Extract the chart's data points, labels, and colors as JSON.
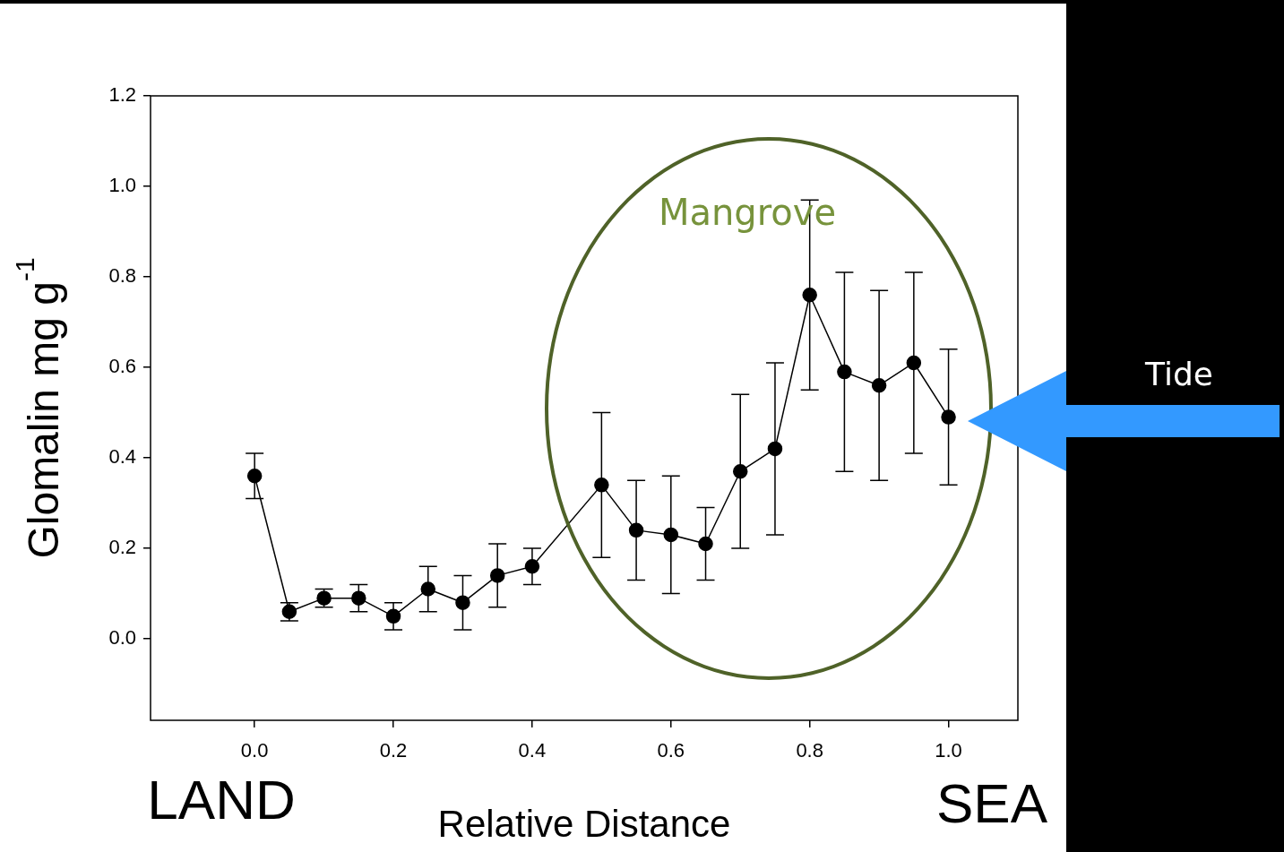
{
  "chart_data": {
    "type": "line",
    "xlabel": "Relative Distance",
    "ylabel": "Glomalin mg g$^{-1}$",
    "x": [
      0,
      0.05,
      0.1,
      0.15,
      0.2,
      0.25,
      0.3,
      0.35,
      0.4,
      0.5,
      0.55,
      0.6,
      0.65,
      0.7,
      0.75,
      0.8,
      0.85,
      0.9,
      0.95,
      1.0
    ],
    "series": [
      {
        "color": "#000000",
        "values": [
          0.36,
          0.06,
          0.09,
          0.09,
          0.05,
          0.11,
          0.08,
          0.14,
          0.16,
          0.34,
          0.24,
          0.23,
          0.21,
          0.37,
          0.42,
          0.76,
          0.59,
          0.56,
          0.61,
          0.49
        ],
        "errors": [
          0.05,
          0.02,
          0.02,
          0.03,
          0.03,
          0.05,
          0.06,
          0.07,
          0.04,
          0.16,
          0.11,
          0.13,
          0.08,
          0.17,
          0.19,
          0.21,
          0.22,
          0.21,
          0.2,
          0.15
        ]
      }
    ],
    "xlim": [
      -0.15,
      1.1
    ],
    "ylim": [
      -0.18,
      1.2
    ],
    "xticks": [
      {
        "value": 0,
        "label": "0.0"
      },
      {
        "value": 0.2,
        "label": "0.2"
      },
      {
        "value": 0.4,
        "label": "0.4"
      },
      {
        "value": 0.6,
        "label": "0.6"
      },
      {
        "value": 0.8,
        "label": "0.8"
      },
      {
        "value": 1.0,
        "label": "1.0"
      }
    ],
    "yticks": [
      {
        "value": 0,
        "label": "0.0"
      },
      {
        "value": 0.2,
        "label": "0.2"
      },
      {
        "value": 0.4,
        "label": "0.4"
      },
      {
        "value": 0.6,
        "label": "0.6"
      },
      {
        "value": 0.8,
        "label": "0.8"
      },
      {
        "value": 1.0,
        "label": "1.0"
      },
      {
        "value": 1.2,
        "label": "1.2"
      }
    ],
    "marker": "circle",
    "line_style": "solid",
    "grid": false,
    "legend": false,
    "annotations": [
      "Mangrove",
      "Tide",
      "LAND",
      "SEA"
    ]
  }
}
